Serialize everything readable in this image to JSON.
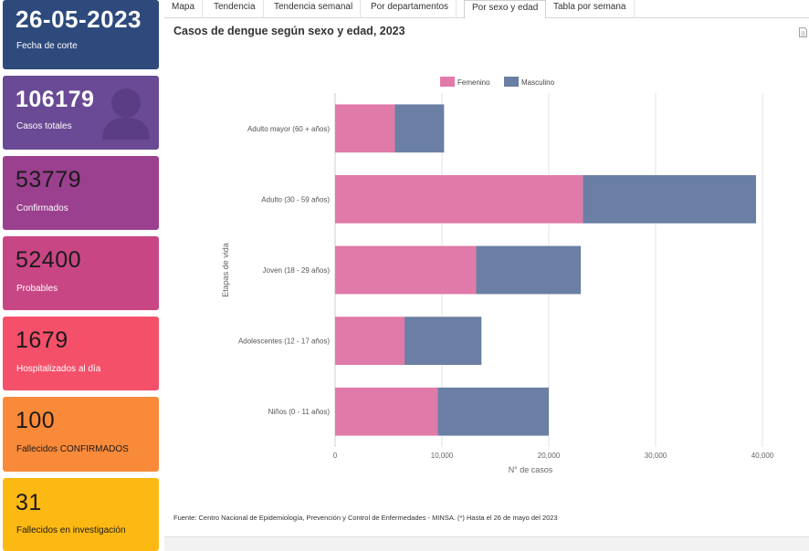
{
  "sidebar": {
    "cards": [
      {
        "value": "26-05-2023",
        "label": "Fecha de corte",
        "color": "#2e4a7d"
      },
      {
        "value": "106179",
        "label": "Casos totales",
        "color": "#6a4a94"
      },
      {
        "value": "53779",
        "label": "Confirmados",
        "color": "#9b3f8f"
      },
      {
        "value": "52400",
        "label": "Probables",
        "color": "#c94684"
      },
      {
        "value": "1679",
        "label": "Hospitalizados al día",
        "color": "#f4506a"
      },
      {
        "value": "100",
        "label": "Fallecidos CONFIRMADOS",
        "color": "#f98a3a"
      },
      {
        "value": "31",
        "label": "Fallecidos en investigación",
        "color": "#fdb913"
      }
    ],
    "avatar_icon": "person-icon"
  },
  "tabs": [
    "Mapa",
    "Tendencia",
    "Tendencia semanal",
    "Por departamentos",
    "Por sexo y edad",
    "Tabla por semana"
  ],
  "active_tab": "Por sexo y edad",
  "chart": {
    "title": "Casos de dengue según sexo y edad, 2023",
    "source": "Fuente: Centro Nacional de Epidemiología, Prevención y Control de Enfermedades - MINSA. (*) Hasta el 26 de mayo del 2023",
    "download_icon": "document-icon"
  },
  "chart_data": {
    "type": "bar",
    "orientation": "horizontal",
    "stacked": true,
    "categories": [
      "Adulto mayor (60 + años)",
      "Adulto (30 - 59 años)",
      "Joven (18 - 29 años)",
      "Adolescentes (12 - 17 años)",
      "Niños (0 - 11 años)"
    ],
    "series": [
      {
        "name": "Femenino",
        "color": "#e07aa8",
        "values": [
          5600,
          23200,
          13200,
          6500,
          9600
        ]
      },
      {
        "name": "Masculino",
        "color": "#6a7fa3",
        "values": [
          4600,
          16200,
          9800,
          7200,
          10400
        ]
      }
    ],
    "xlabel": "N° de casos",
    "ylabel": "Etapas de vida",
    "xlim": [
      0,
      40000
    ],
    "xticks": [
      "0",
      "10,000",
      "20,000",
      "30,000",
      "40,000"
    ],
    "xtick_values": [
      0,
      10000,
      20000,
      30000,
      40000
    ],
    "legend_position": "top-center",
    "grid": true
  }
}
